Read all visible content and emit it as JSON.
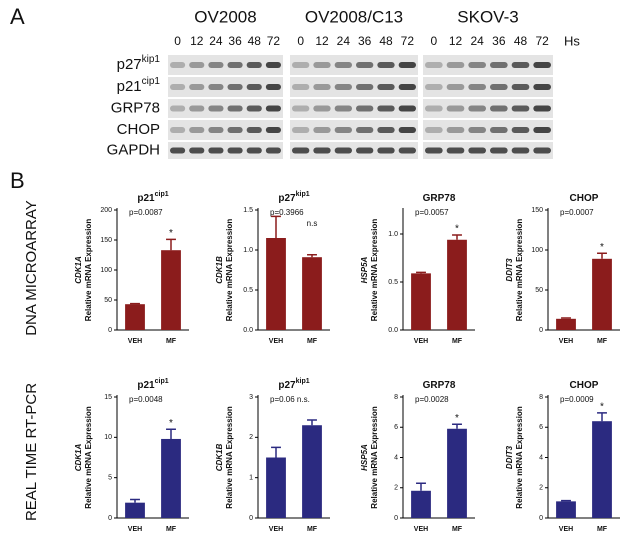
{
  "panel_labels": [
    "A",
    "B"
  ],
  "blot": {
    "unit": "Hs",
    "panels": [
      {
        "name": "OV2008",
        "timepoints": [
          0,
          12,
          24,
          36,
          48,
          72
        ]
      },
      {
        "name": "OV2008/C13",
        "timepoints": [
          0,
          12,
          24,
          36,
          48,
          72
        ]
      },
      {
        "name": "SKOV-3",
        "timepoints": [
          0,
          12,
          24,
          36,
          48,
          72
        ]
      }
    ],
    "rows": [
      {
        "name": "p27",
        "sup": "kip1"
      },
      {
        "name": "p21",
        "sup": "cip1"
      },
      {
        "name": "GRP78"
      },
      {
        "name": "CHOP"
      },
      {
        "name": "GAPDH"
      }
    ]
  },
  "row_labels": [
    "DNA MICROARRAY",
    "REAL TIME RT-PCR"
  ],
  "chart_data": [
    {
      "type": "bar",
      "title": "p21",
      "title_sup": "cip1",
      "ylabel_gene": "CDK1A",
      "ylabel": "Relative mRNA Expression",
      "categories": [
        "VEH",
        "MF"
      ],
      "values": [
        43,
        133
      ],
      "errors": [
        1,
        18
      ],
      "color": "#8b1c1c",
      "ylim": [
        0,
        200
      ],
      "yticks": [
        0,
        50,
        100,
        150,
        200
      ],
      "p_value": "p=0.0087",
      "star": "*"
    },
    {
      "type": "bar",
      "title": "p27",
      "title_sup": "kip1",
      "ylabel_gene": "CDK1B",
      "ylabel": "Relative mRNA Expression",
      "categories": [
        "VEH",
        "MF"
      ],
      "values": [
        1.15,
        0.91
      ],
      "errors": [
        0.27,
        0.03
      ],
      "color": "#8b1c1c",
      "ylim": [
        0,
        1.5
      ],
      "yticks": [
        {
          "value": 0,
          "label": "0.0"
        },
        {
          "value": 0.5,
          "label": "0.5"
        },
        {
          "value": 1,
          "label": "1.0"
        },
        {
          "value": 1.5,
          "label": "1.5"
        }
      ],
      "p_value": "p=0.3966",
      "ns": "n.s"
    },
    {
      "type": "bar",
      "title": "GRP78",
      "ylabel_gene": "HSP5A",
      "ylabel": "Relative mRNA Expression",
      "categories": [
        "VEH",
        "MF"
      ],
      "values": [
        0.59,
        0.94
      ],
      "errors": [
        0.01,
        0.05
      ],
      "color": "#8b1c1c",
      "ylim": [
        0,
        1.25
      ],
      "yticks": [
        {
          "value": 0,
          "label": "0.0"
        },
        {
          "value": 0.5,
          "label": "0.5"
        },
        {
          "value": 1,
          "label": "1.0"
        }
      ],
      "p_value": "p=0.0057",
      "star": "*"
    },
    {
      "type": "bar",
      "title": "CHOP",
      "ylabel_gene": "DDIT3",
      "ylabel": "Relative mRNA Expression",
      "categories": [
        "VEH",
        "MF"
      ],
      "values": [
        14,
        89
      ],
      "errors": [
        1,
        7
      ],
      "color": "#8b1c1c",
      "ylim": [
        0,
        150
      ],
      "yticks": [
        0,
        50,
        100,
        150
      ],
      "p_value": "p=0.0007",
      "star": "*"
    },
    {
      "type": "bar",
      "title": "p21",
      "title_sup": "cip1",
      "ylabel_gene": "CDK1A",
      "ylabel": "Relative mRNA Expression",
      "categories": [
        "VEH",
        "MF"
      ],
      "values": [
        1.9,
        9.8
      ],
      "errors": [
        0.4,
        1.2
      ],
      "color": "#2b2a80",
      "ylim": [
        0,
        15
      ],
      "yticks": [
        0,
        5,
        10,
        15
      ],
      "p_value": "p=0.0048",
      "star": "*"
    },
    {
      "type": "bar",
      "title": "p27",
      "title_sup": "kip1",
      "ylabel_gene": "CDK1B",
      "ylabel": "Relative mRNA Expression",
      "categories": [
        "VEH",
        "MF"
      ],
      "values": [
        1.5,
        2.3
      ],
      "errors": [
        0.25,
        0.13
      ],
      "color": "#2b2a80",
      "ylim": [
        0,
        3
      ],
      "yticks": [
        0,
        1,
        2,
        3
      ],
      "p_value": "p=0.06 n.s."
    },
    {
      "type": "bar",
      "title": "GRP78",
      "ylabel_gene": "HSP5A",
      "ylabel": "Relative mRNA Expression",
      "categories": [
        "VEH",
        "MF"
      ],
      "values": [
        1.8,
        5.9
      ],
      "errors": [
        0.5,
        0.3
      ],
      "color": "#2b2a80",
      "ylim": [
        0,
        8
      ],
      "yticks": [
        0,
        2,
        4,
        6,
        8
      ],
      "p_value": "p=0.0028",
      "star": "*"
    },
    {
      "type": "bar",
      "title": "CHOP",
      "ylabel_gene": "DDIT3",
      "ylabel": "Relative mRNA Expression",
      "categories": [
        "VEH",
        "MF"
      ],
      "values": [
        1.1,
        6.4
      ],
      "errors": [
        0.05,
        0.55
      ],
      "color": "#2b2a80",
      "ylim": [
        0,
        8
      ],
      "yticks": [
        0,
        2,
        4,
        6,
        8
      ],
      "p_value": "p=0.0009",
      "star": "*"
    }
  ]
}
